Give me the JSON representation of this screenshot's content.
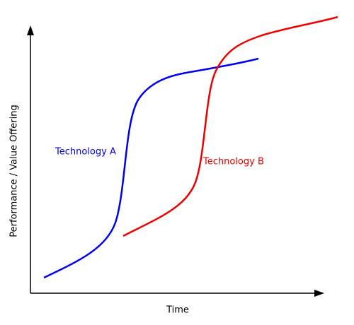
{
  "x_axis_label": "Time",
  "y_axis_label": "Performance / Value Offering",
  "curves": [
    {
      "label": "Technology A"
    },
    {
      "label": "Technology B"
    }
  ]
}
